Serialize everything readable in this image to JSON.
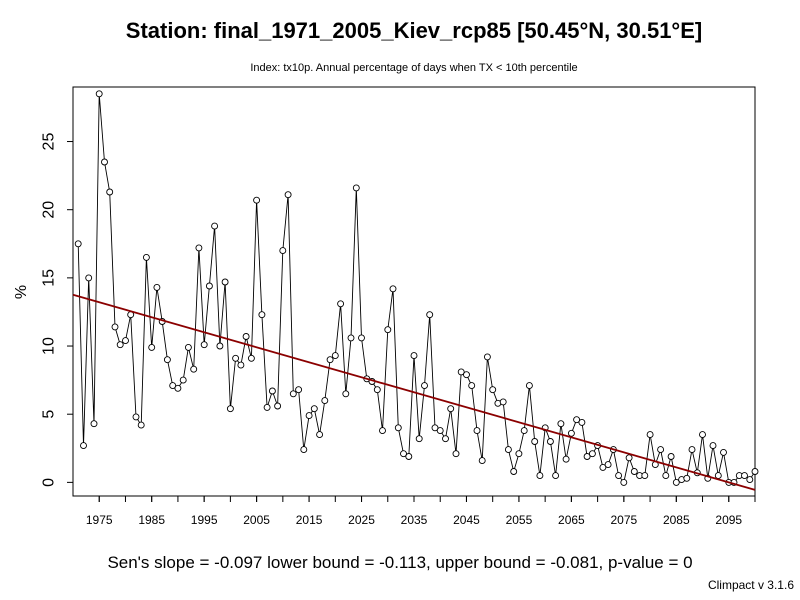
{
  "chart_data": {
    "type": "line",
    "title": "Station: final_1971_2005_Kiev_rcp85 [50.45°N, 30.51°E]",
    "subtitle": "Index: tx10p. Annual percentage of days when TX < 10th percentile",
    "xlabel": "",
    "ylabel": "%",
    "x_ticks": [
      1975,
      1985,
      1995,
      2005,
      2015,
      2025,
      2035,
      2045,
      2055,
      2065,
      2075,
      2085,
      2095
    ],
    "y_ticks": [
      0,
      5,
      10,
      15,
      20,
      25
    ],
    "xlim": [
      1970,
      2100
    ],
    "ylim": [
      -1,
      29
    ],
    "x": [
      1971,
      1972,
      1973,
      1974,
      1975,
      1976,
      1977,
      1978,
      1979,
      1980,
      1981,
      1982,
      1983,
      1984,
      1985,
      1986,
      1987,
      1988,
      1989,
      1990,
      1991,
      1992,
      1993,
      1994,
      1995,
      1996,
      1997,
      1998,
      1999,
      2000,
      2001,
      2002,
      2003,
      2004,
      2005,
      2006,
      2007,
      2008,
      2009,
      2010,
      2011,
      2012,
      2013,
      2014,
      2015,
      2016,
      2017,
      2018,
      2019,
      2020,
      2021,
      2022,
      2023,
      2024,
      2025,
      2026,
      2027,
      2028,
      2029,
      2030,
      2031,
      2032,
      2033,
      2034,
      2035,
      2036,
      2037,
      2038,
      2039,
      2040,
      2041,
      2042,
      2043,
      2044,
      2045,
      2046,
      2047,
      2048,
      2049,
      2050,
      2051,
      2052,
      2053,
      2054,
      2055,
      2056,
      2057,
      2058,
      2059,
      2060,
      2061,
      2062,
      2063,
      2064,
      2065,
      2066,
      2067,
      2068,
      2069,
      2070,
      2071,
      2072,
      2073,
      2074,
      2075,
      2076,
      2077,
      2078,
      2079,
      2080,
      2081,
      2082,
      2083,
      2084,
      2085,
      2086,
      2087,
      2088,
      2089,
      2090,
      2091,
      2092,
      2093,
      2094,
      2095,
      2096,
      2097,
      2098,
      2099,
      2100
    ],
    "series": [
      {
        "values": [
          17.5,
          2.7,
          15.0,
          4.3,
          28.5,
          23.5,
          21.3,
          11.4,
          10.1,
          10.4,
          12.3,
          4.8,
          4.2,
          16.5,
          9.9,
          14.3,
          11.8,
          9.0,
          7.1,
          6.9,
          7.5,
          9.9,
          8.3,
          17.2,
          10.1,
          14.4,
          18.8,
          10.0,
          14.7,
          5.4,
          9.1,
          8.6,
          10.7,
          9.1,
          20.7,
          12.3,
          5.5,
          6.7,
          5.6,
          17.0,
          21.1,
          6.5,
          6.8,
          2.4,
          4.9,
          5.4,
          3.5,
          6.0,
          9.0,
          9.3,
          13.1,
          6.5,
          10.6,
          21.6,
          10.6,
          7.6,
          7.4,
          6.8,
          3.8,
          11.2,
          14.2,
          4.0,
          2.1,
          1.9,
          9.3,
          3.2,
          7.1,
          12.3,
          4.0,
          3.8,
          3.2,
          5.4,
          2.1,
          8.1,
          7.9,
          7.1,
          3.8,
          1.6,
          9.2,
          6.8,
          5.8,
          5.9,
          2.4,
          0.8,
          2.1,
          3.8,
          7.1,
          3.0,
          0.5,
          4.0,
          3.0,
          0.5,
          4.3,
          1.7,
          3.6,
          4.6,
          4.4,
          1.9,
          2.1,
          2.7,
          1.1,
          1.3,
          2.4,
          0.5,
          0.0,
          1.8,
          0.8,
          0.5,
          0.5,
          3.5,
          1.3,
          2.4,
          0.5,
          1.9,
          0.0,
          0.2,
          0.3,
          2.4,
          0.7,
          3.5,
          0.3,
          2.7,
          0.5,
          2.2,
          0.0,
          0.0,
          0.5,
          0.5,
          0.2,
          0.8
        ]
      }
    ],
    "trend_line": {
      "type": "linear",
      "color": "#8b0000",
      "slope": -0.097
    },
    "stats_text": "Sen's slope = -0.097   lower bound = -0.113,   upper bound = -0.081,   p-value = 0",
    "credit": "Climpact v 3.1.6",
    "grid": false,
    "legend": "none",
    "colors": {
      "line": "#000000",
      "points": "#000000",
      "trend": "#8b0000"
    }
  }
}
